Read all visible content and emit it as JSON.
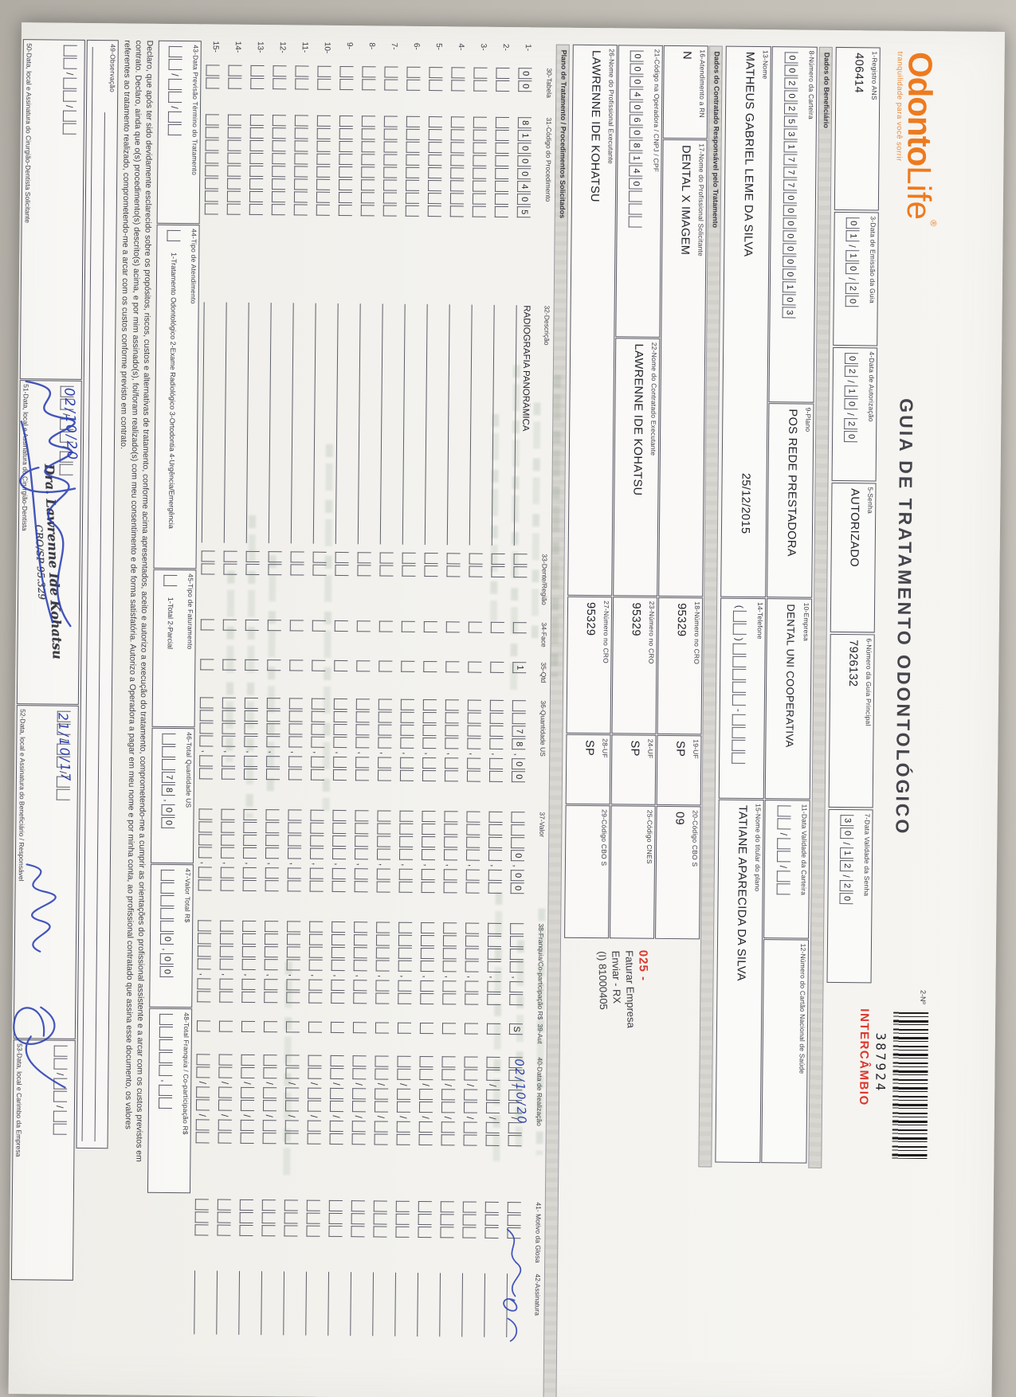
{
  "header": {
    "logo_part1": "Odonto",
    "logo_part2": "Life",
    "logo_reg": "®",
    "tagline": "tranquilidade para você sorrir",
    "title": "GUIA DE TRATAMENTO ODONTOLÓGICO",
    "guide_number_label": "2-Nº",
    "barcode_number": "387924",
    "barcode_tag": "INTERCÂMBIO"
  },
  "colors": {
    "accent_orange": "#ee7a1e",
    "stamp_red": "#dd362c",
    "ink_blue": "#2e41b0",
    "paper": "#f4f3ef"
  },
  "sections": {
    "beneficiario": "Dados do Beneficiário",
    "contratado": "Dados do Contratado Responsável pelo Tratamento",
    "plano": "Plano de Tratamento / Procedimentos Solicitados"
  },
  "fields": {
    "f1": {
      "label": "1-Registro ANS",
      "value": "406414"
    },
    "f3": {
      "label": "3-Data de Emissão da Guia",
      "comb": "01/10/20"
    },
    "f4": {
      "label": "4-Data de Autorização",
      "comb": "02/10/20"
    },
    "f5": {
      "label": "5-Senha",
      "value": "AUTORIZADO"
    },
    "f6": {
      "label": "6-Número da Guia Principal",
      "value": "7926132"
    },
    "f7": {
      "label": "7-Data Validade da Senha",
      "comb": "30/12/20"
    },
    "f8": {
      "label": "8-Número da Carteira",
      "comb": "002025317770000000103"
    },
    "f9": {
      "label": "9-Plano",
      "value": "POS REDE PRESTADORA"
    },
    "f10": {
      "label": "10-Empresa",
      "value": "DENTAL UNI  COOPERATIVA"
    },
    "f11": {
      "label": "11-Data Validade da Carteira",
      "comb": "  /  /  "
    },
    "f12": {
      "label": "12-Número do Cartão Nacional de Saúde",
      "value": ""
    },
    "f13": {
      "label": "13-Nome",
      "value": "MATHEUS GABRIEL LEME DA SILVA",
      "extra": "25/12/2015"
    },
    "f14": {
      "label": "14-Telefone",
      "comb": "(  )     -    "
    },
    "f15": {
      "label": "15-Nome do titular do plano",
      "value": "TATIANE APARECIDA DA SILVA"
    },
    "f16": {
      "label": "16-Atendimento a RN",
      "value": "N"
    },
    "f17": {
      "label": "17-Nome do Profissional Solicitante",
      "value": "DENTAL X IMAGEM"
    },
    "f18": {
      "label": "18-Número no CRO",
      "value": "95329"
    },
    "f19": {
      "label": "19-UF",
      "value": "SP"
    },
    "f20": {
      "label": "20-Código CBO S",
      "value": "09"
    },
    "f21": {
      "label": "21-Código na Operadora / CNPJ / CPF",
      "comb": "00040608140   "
    },
    "f22": {
      "label": "22-Nome do Contratado Executante",
      "value": "LAWRENNE IDE KOHATSU"
    },
    "f23": {
      "label": "23-Número no CRO",
      "value": "95329"
    },
    "f24": {
      "label": "24-UF",
      "value": "SP"
    },
    "f25": {
      "label": "25-Código CNES",
      "value": ""
    },
    "f26": {
      "label": "26-Nome do Profissional Executante",
      "value": "LAWRENNE IDE KOHATSU"
    },
    "f27": {
      "label": "27-Número no CRO",
      "value": "95329"
    },
    "f28": {
      "label": "28-UF",
      "value": "SP"
    },
    "f29": {
      "label": "29-Código CBO S",
      "value": ""
    },
    "f43": {
      "label": "43-Data Previsão Término do Tratamento",
      "comb": "  /  /  "
    },
    "f44": {
      "label": "44-Tipo de Atendimento",
      "comb": " ",
      "options": "1-Tratamento Odontológico  2-Exame Radiológico  3-Ortodontia  4-Urgência/Emergência"
    },
    "f45": {
      "label": "45-Tipo de Faturamento",
      "comb": " ",
      "options": "1-Total  2-Parcial"
    },
    "f46": {
      "label": "46-Total Quantidade US",
      "comb": "   78,00"
    },
    "f47": {
      "label": "47-Valor Total R$",
      "comb": "     0,00"
    },
    "f48": {
      "label": "48-Total Franquia / Co-participação R$",
      "comb": "     ,  "
    },
    "f49": {
      "label": "49-Observação"
    },
    "f50": {
      "label": "50-Data, local e Assinatura do Cirurgião-Dentista Solicitante",
      "comb": "  /  /  "
    },
    "f51": {
      "label": "51-Data, local e Assinatura do Cirurgião-Dentista",
      "comb": "  /  /  ",
      "handwriting": "02/10/20"
    },
    "f52": {
      "label": "52-Data, local e Assinatura do Beneficiário / Responsável",
      "comb": "  /  /  ",
      "handwriting": "21/10/17"
    },
    "f53": {
      "label": "53-Data, local e Carimbo da Empresa",
      "comb": "  /  /  "
    }
  },
  "authorization_stamp": {
    "line1": "025 -",
    "line2": "Faturar Empresa",
    "line3": "Enviar - RX",
    "line4": "(I) 81000405"
  },
  "dentist_stamp": {
    "line1": "Dra. Lawrenne Ide Kohatsu",
    "line2": "CRO/SP 95.329"
  },
  "declaration": {
    "l1": "Declaro, que após ter sido devidamente esclarecido sobre os propósitos, riscos, custos e alternativas de tratamento, conforme acima apresentados, aceito e autorizo a execução do tratamento, comprometendo-me a cumprir as orientações do profissional assistente e a arcar com os custos previstos em",
    "l2": "contrato. Declaro, ainda que o(s) procedimento(s) descrito(s) acima, e por mim assinado(s), foi/foram realizado(s) com meu consentimento e de forma satisfatória. Autorizo a Operadora a pagar em meu nome e por minha conta, ao profissional contratado que assina esse documento, os valores",
    "l3": "referentes ao tratamento realizado, comprometendo-me a arcar com os custos conforme previsto em contrato."
  },
  "table": {
    "columns": [
      "30-Tabela",
      "31-Código do Procedimento",
      "32-Descrição",
      "33-Dente/Região",
      "34-Face",
      "35-Qtd",
      "36-Quantidade US",
      "37-Valor",
      "38-Franquia/Co-participação R$",
      "39-Aut",
      "40-Data de Realização",
      "41- Motivo da Glosa",
      "42-Assinatura"
    ],
    "row_count": 15,
    "first_row": {
      "num": "1-",
      "tabela": "00",
      "codigo": "81000405",
      "descricao": "RADIOGRAFIA PANORÂMICA",
      "dente": "  ",
      "face": " ",
      "qtd": "1",
      "qtd_us": "  78,00",
      "valor": "   0,00",
      "franquia": "    ,  ",
      "aut": "S",
      "data": "  /  /  ",
      "data_handwritten": "02/10/20",
      "motivo": "   "
    },
    "empty_row": {
      "tabela": "  ",
      "codigo": "        ",
      "descricao": "",
      "dente": "  ",
      "face": " ",
      "qtd": " ",
      "qtd_us": "    ,  ",
      "valor": "    ,  ",
      "franquia": "    ,  ",
      "aut": " ",
      "data": "  /  /  ",
      "motivo": "   "
    }
  }
}
